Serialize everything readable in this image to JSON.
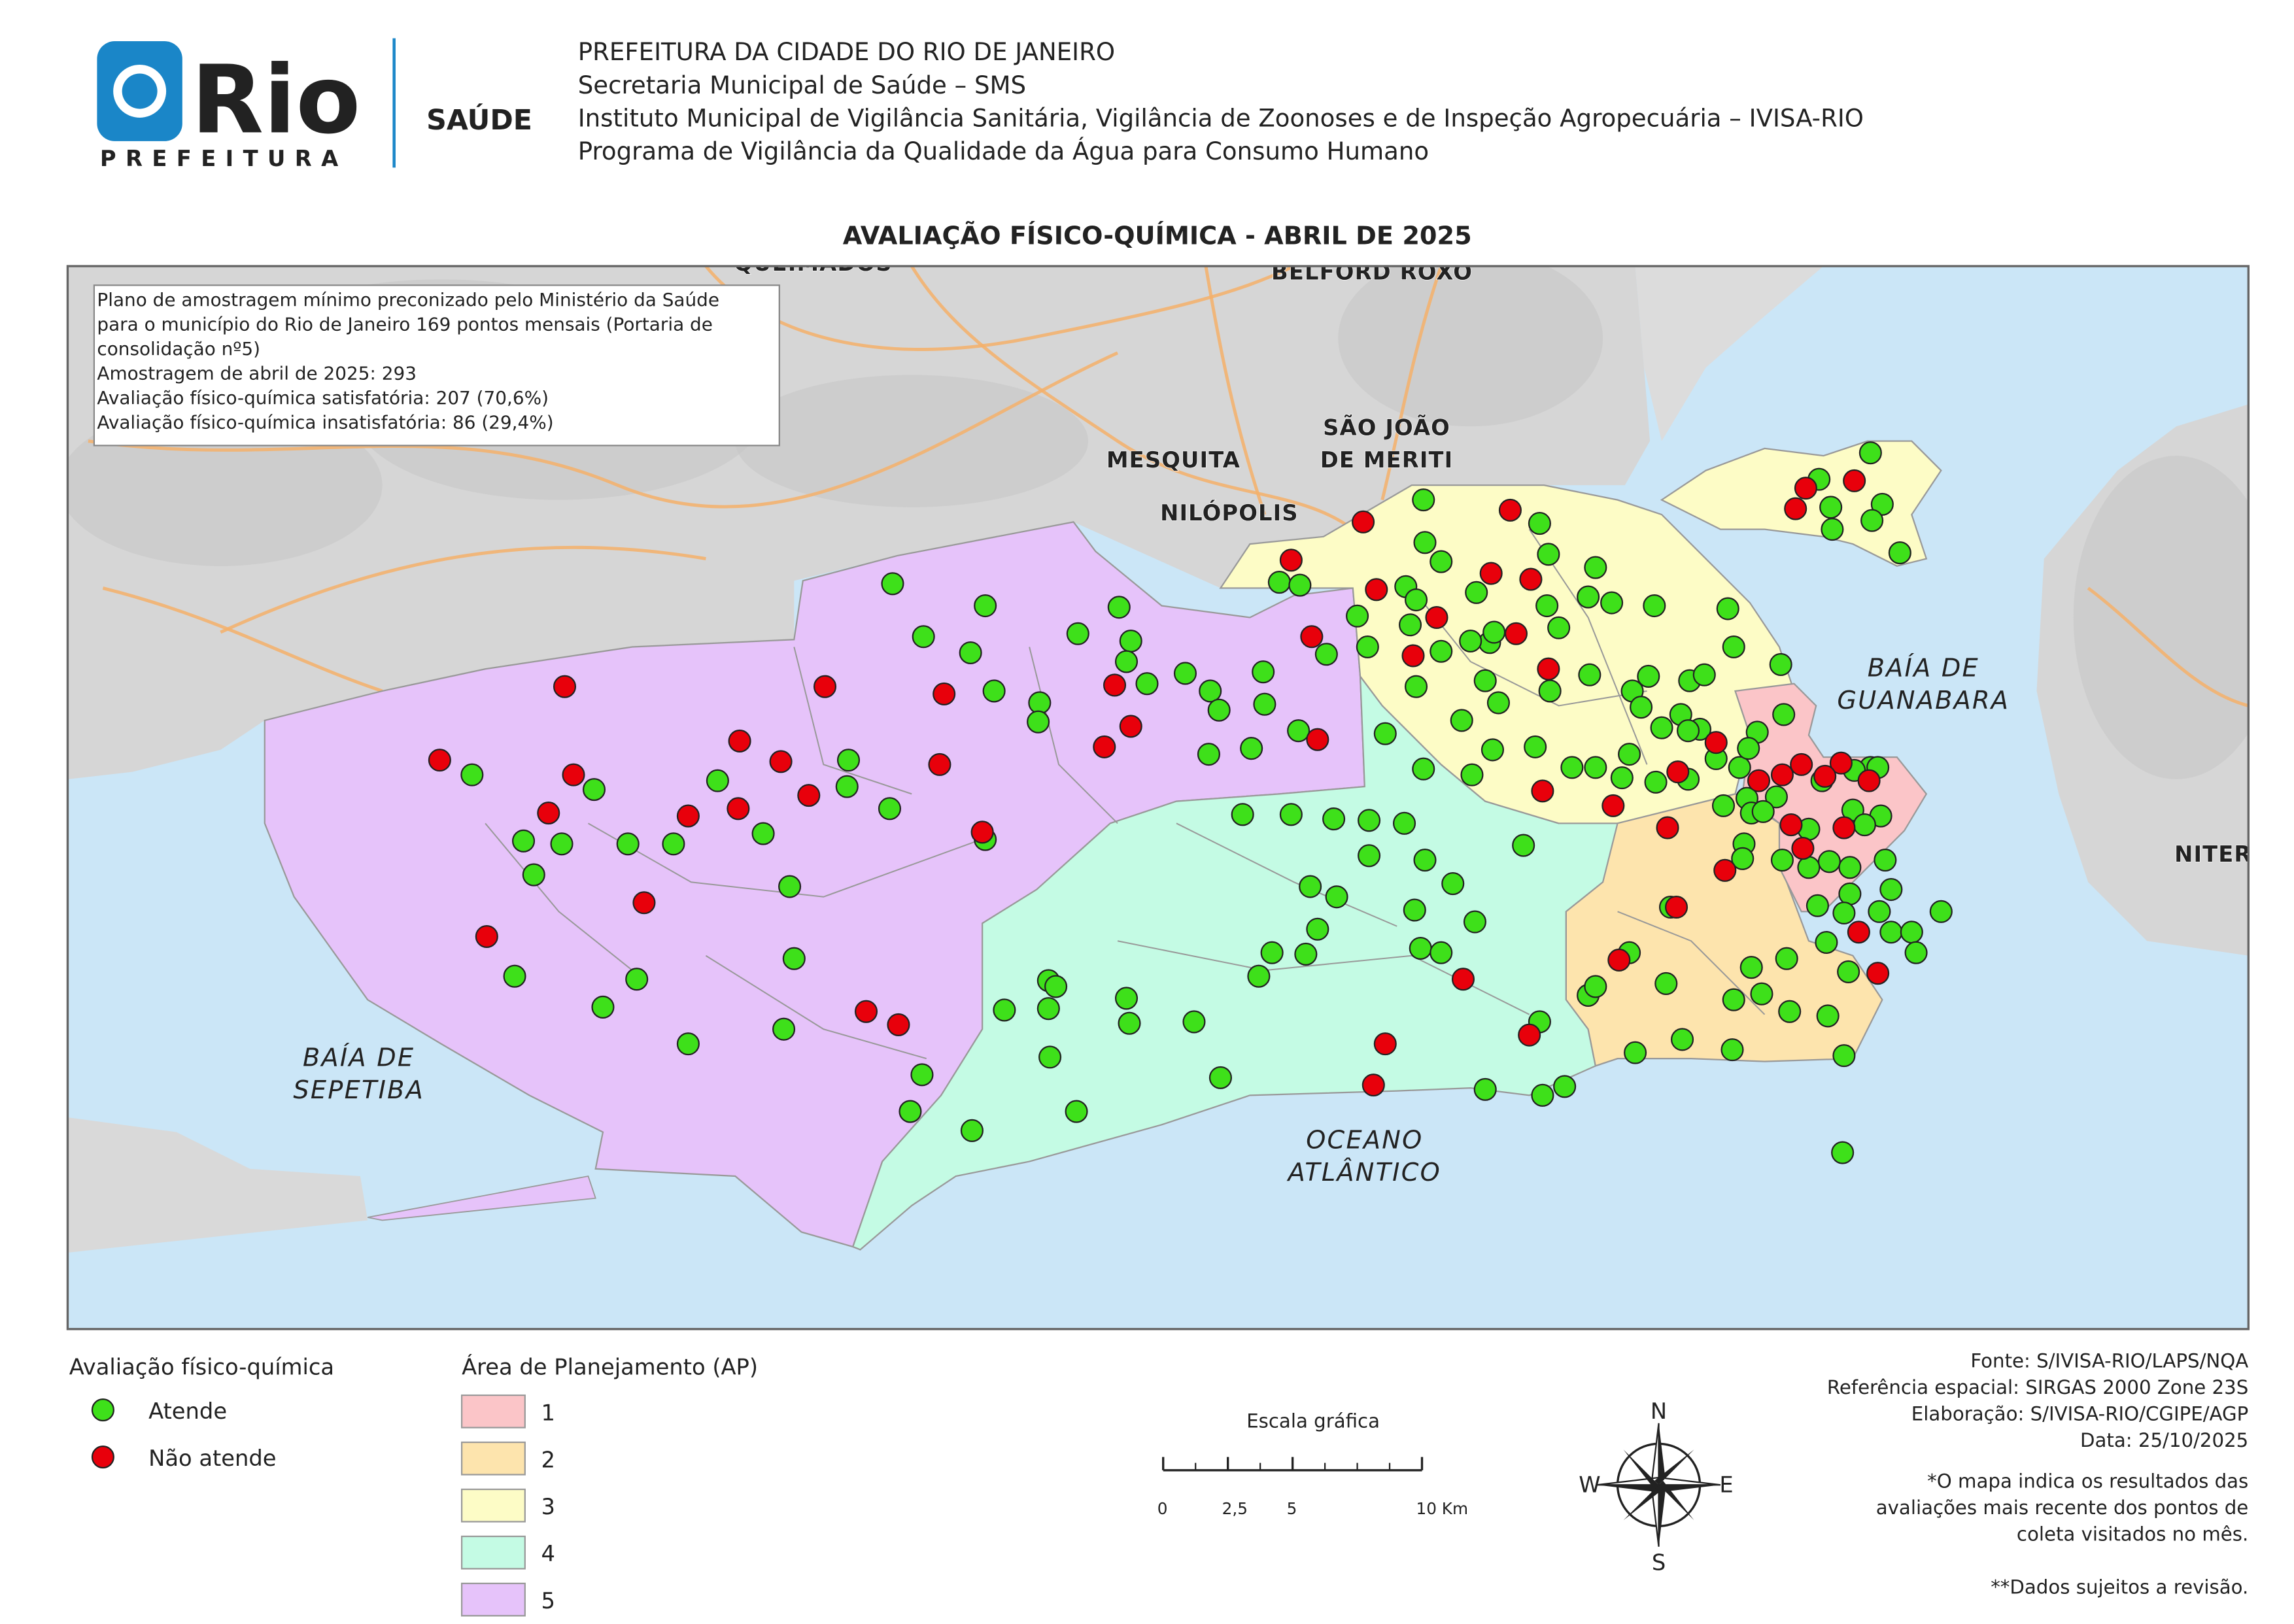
{
  "header": {
    "logo_text": "Rio",
    "logo_sub": "PREFEITURA",
    "dept": "SAÚDE",
    "lines": [
      "PREFEITURA DA CIDADE DO RIO DE JANEIRO",
      "Secretaria Municipal de Saúde – SMS",
      "Instituto Municipal de Vigilância Sanitária, Vigilância de Zoonoses e de Inspeção Agropecuária – IVISA-RIO",
      "Programa de Vigilância da Qualidade da Água para Consumo Humano"
    ]
  },
  "title": "AVALIAÇÃO FÍSICO-QUÍMICA - ABRIL DE 2025",
  "info_box": [
    "Plano de amostragem mínimo preconizado pelo Ministério da Saúde",
    "para o município do Rio de Janeiro 169 pontos mensais (Portaria de",
    "consolidação nº5)",
    "Amostragem de abril de 2025: 293",
    "Avaliação físico-química satisfatória: 207 (70,6%)",
    "Avaliação físico-química insatisfatória: 86 (29,4%)"
  ],
  "map_labels": [
    {
      "lines": [
        "QUEIMADOS"
      ],
      "kind": "city"
    },
    {
      "lines": [
        "BELFORD ROXO"
      ],
      "kind": "city"
    },
    {
      "lines": [
        "SÃO JOÃO",
        "DE MERITI"
      ],
      "kind": "city"
    },
    {
      "lines": [
        "MESQUITA"
      ],
      "kind": "city"
    },
    {
      "lines": [
        "NILÓPOLIS"
      ],
      "kind": "city"
    },
    {
      "lines": [
        "NITER"
      ],
      "kind": "city"
    },
    {
      "lines": [
        "BAÍA DE",
        "GUANABARA"
      ],
      "kind": "water"
    },
    {
      "lines": [
        "BAÍA DE",
        "SEPETIBA"
      ],
      "kind": "water"
    },
    {
      "lines": [
        "OCEANO",
        "ATLÂNTICO"
      ],
      "kind": "water"
    }
  ],
  "legend": {
    "points": {
      "title": "Avaliação físico-química",
      "items": [
        {
          "label": "Atende",
          "color": "#3ee01a"
        },
        {
          "label": "Não atende",
          "color": "#e8000b"
        }
      ]
    },
    "ap": {
      "title": "Área de Planejamento (AP)",
      "items": [
        {
          "label": "1",
          "color": "#fbc5c8"
        },
        {
          "label": "2",
          "color": "#fde4ad"
        },
        {
          "label": "3",
          "color": "#fdfcc6"
        },
        {
          "label": "4",
          "color": "#c4fbe4"
        },
        {
          "label": "5",
          "color": "#e6c3fa"
        }
      ]
    }
  },
  "scale": {
    "title": "Escala gráfica",
    "ticks": [
      {
        "value": 0,
        "label": "0"
      },
      {
        "value": 2.5,
        "label": "2,5"
      },
      {
        "value": 5,
        "label": "5"
      },
      {
        "value": 10,
        "label": "10 Km"
      }
    ]
  },
  "compass": {
    "n": "N",
    "s": "S",
    "e": "E",
    "w": "W"
  },
  "credits": [
    "Fonte: S/IVISA-RIO/LAPS/NQA",
    "Referência espacial: SIRGAS 2000 Zone 23S",
    "Elaboração: S/IVISA-RIO/CGIPE/AGP",
    "Data: 25/10/2025"
  ],
  "notes": [
    "*O mapa indica os resultados das",
    "avaliações mais recente dos pontos de",
    "coleta visitados no mês.",
    "**Dados sujeitos a revisão."
  ]
}
